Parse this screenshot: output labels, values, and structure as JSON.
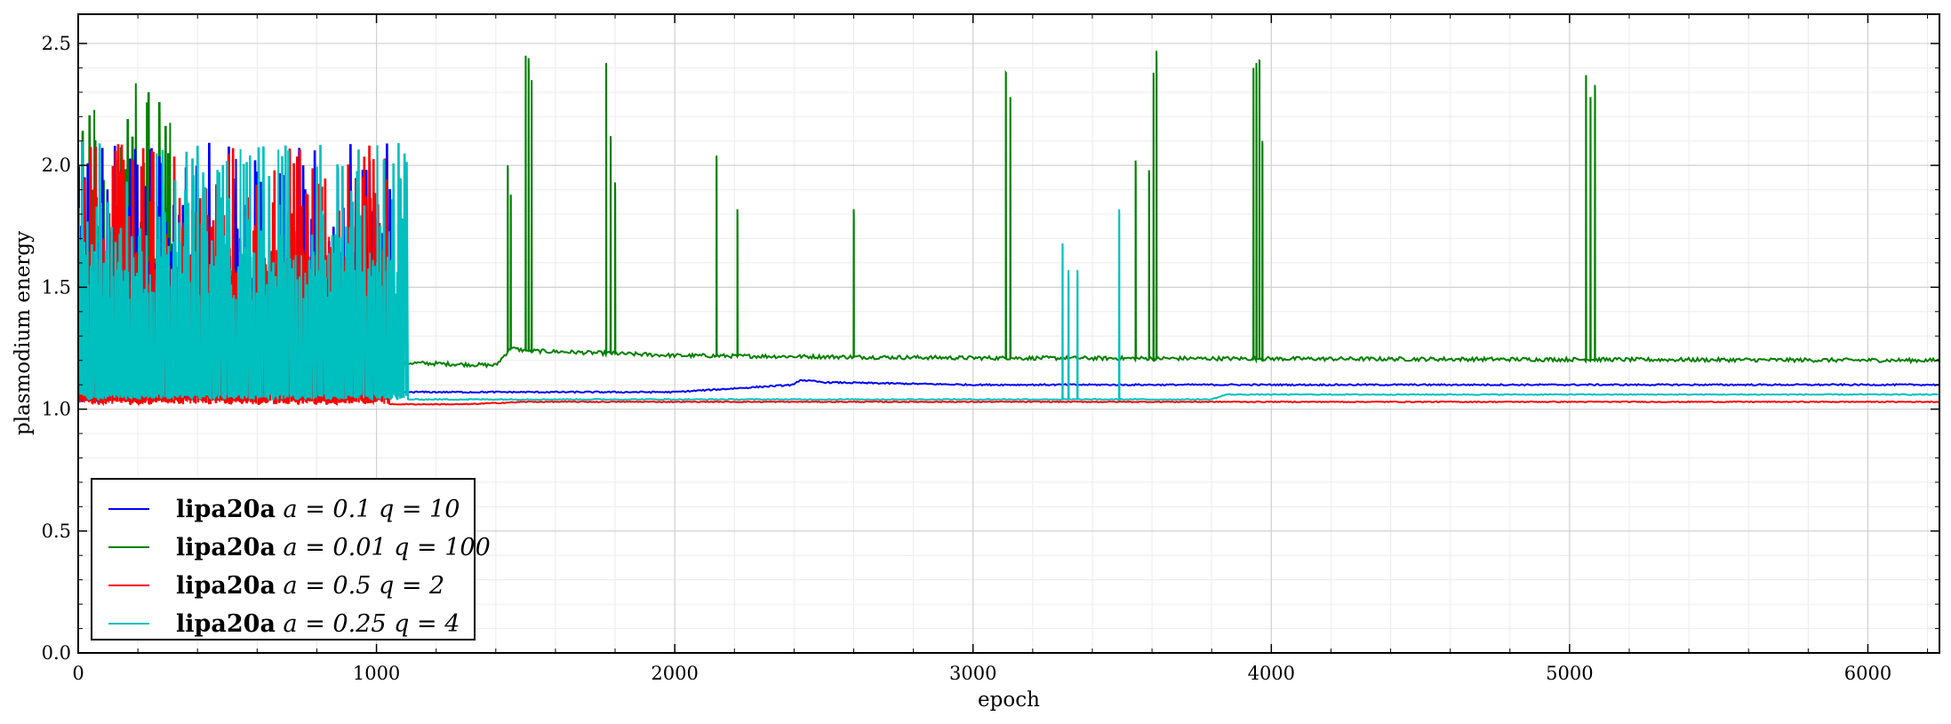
{
  "chart_data": {
    "type": "line",
    "title": "",
    "xlabel": "epoch",
    "ylabel": "plasmodium energy",
    "xlim": [
      0,
      6240
    ],
    "ylim": [
      0.0,
      2.62
    ],
    "xticks": [
      0,
      1000,
      2000,
      3000,
      4000,
      5000,
      6000
    ],
    "yticks": [
      0.0,
      0.5,
      1.0,
      1.5,
      2.0,
      2.5
    ],
    "xtick_labels": [
      "0",
      "1000",
      "2000",
      "3000",
      "4000",
      "5000",
      "6000"
    ],
    "ytick_labels": [
      "0.0",
      "0.5",
      "1.0",
      "1.5",
      "2.0",
      "2.5"
    ],
    "grid": true,
    "legend_placement": "lower-left",
    "series": [
      {
        "name": "lipa20a a = 0.1 q = 10",
        "legend_main": "lipa20a",
        "legend_math": "a = 0.1 q = 10",
        "color": "#0000ff",
        "baseline": [
          [
            0,
            1.03
          ],
          [
            600,
            1.05
          ],
          [
            700,
            1.06
          ],
          [
            1000,
            1.07
          ],
          [
            2000,
            1.07
          ],
          [
            2400,
            1.1
          ],
          [
            2420,
            1.12
          ],
          [
            2500,
            1.11
          ],
          [
            3000,
            1.1
          ],
          [
            6240,
            1.1
          ]
        ],
        "noise": 0.003,
        "chaos_end": 1050,
        "spike_min": 1.03,
        "spike_max": 2.1,
        "spikes": []
      },
      {
        "name": "lipa20a a = 0.01 q = 100",
        "legend_main": "lipa20a",
        "legend_math": "a = 0.01 q = 100",
        "color": "#008000",
        "baseline": [
          [
            0,
            1.05
          ],
          [
            500,
            1.15
          ],
          [
            900,
            1.17
          ],
          [
            1100,
            1.19
          ],
          [
            1400,
            1.18
          ],
          [
            1450,
            1.25
          ],
          [
            1500,
            1.24
          ],
          [
            2000,
            1.22
          ],
          [
            3000,
            1.21
          ],
          [
            6240,
            1.2
          ]
        ],
        "noise": 0.008,
        "chaos_end": 330,
        "spike_min": 1.05,
        "spike_max": 2.35,
        "spikes": [
          [
            1440,
            2.0
          ],
          [
            1450,
            1.88
          ],
          [
            1500,
            2.45
          ],
          [
            1510,
            2.44
          ],
          [
            1520,
            2.35
          ],
          [
            1770,
            2.42
          ],
          [
            1785,
            2.12
          ],
          [
            1800,
            1.93
          ],
          [
            2140,
            2.04
          ],
          [
            2210,
            1.82
          ],
          [
            2600,
            1.82
          ],
          [
            3110,
            2.38
          ],
          [
            3125,
            2.28
          ],
          [
            3545,
            2.02
          ],
          [
            3590,
            1.98
          ],
          [
            3605,
            2.38
          ],
          [
            3615,
            2.47
          ],
          [
            3940,
            2.4
          ],
          [
            3950,
            2.42
          ],
          [
            3960,
            2.43
          ],
          [
            3970,
            2.1
          ],
          [
            5055,
            2.37
          ],
          [
            5070,
            2.28
          ],
          [
            5085,
            2.33
          ]
        ]
      },
      {
        "name": "lipa20a a = 0.5 q = 2",
        "legend_main": "lipa20a",
        "legend_math": "a = 0.5 q = 2",
        "color": "#ff0000",
        "baseline": [
          [
            0,
            1.02
          ],
          [
            1300,
            1.02
          ],
          [
            1500,
            1.03
          ],
          [
            6240,
            1.03
          ]
        ],
        "noise": 0.002,
        "chaos_end": 1040,
        "spike_min": 1.02,
        "spike_max": 2.1,
        "spikes": []
      },
      {
        "name": "lipa20a a = 0.25 q = 4",
        "legend_main": "lipa20a",
        "legend_math": "a = 0.25 q = 4",
        "color": "#00bfbf",
        "baseline": [
          [
            0,
            1.04
          ],
          [
            1100,
            1.04
          ],
          [
            3800,
            1.04
          ],
          [
            3850,
            1.06
          ],
          [
            6240,
            1.06
          ]
        ],
        "noise": 0.002,
        "chaos_end": 1100,
        "spike_min": 1.04,
        "spike_max": 2.1,
        "spikes": [
          [
            3300,
            1.68
          ],
          [
            3320,
            1.57
          ],
          [
            3350,
            1.57
          ],
          [
            3490,
            1.82
          ]
        ]
      }
    ]
  }
}
